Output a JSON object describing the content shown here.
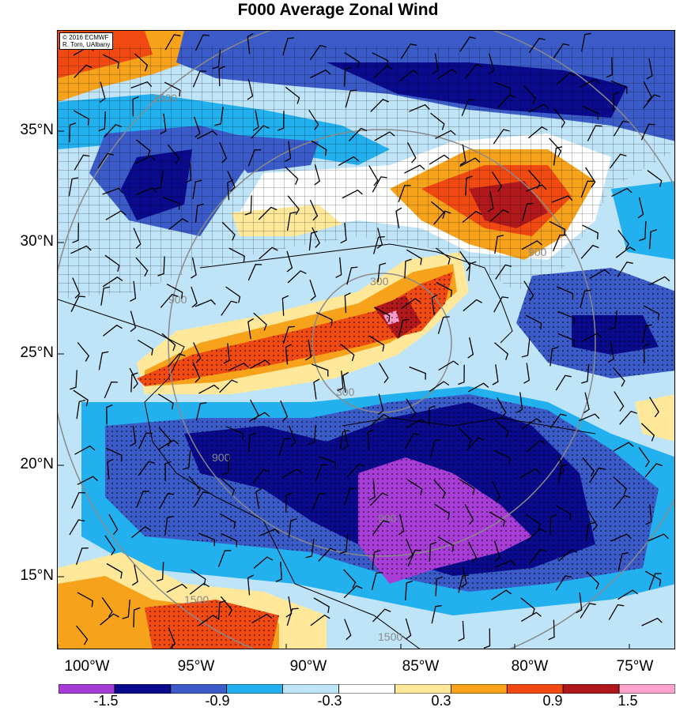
{
  "title": "F000 Average Zonal Wind",
  "credit": {
    "line1": "© 2016 ECMWF",
    "line2": "R. Torn, UAlbany"
  },
  "lat_labels": [
    "35°N",
    "30°N",
    "25°N",
    "20°N",
    "15°N"
  ],
  "lon_labels": [
    "100°W",
    "95°W",
    "90°W",
    "85°W",
    "80°W",
    "75°W"
  ],
  "contour_labels": [
    "300",
    "300",
    "900",
    "900",
    "900",
    "900",
    "1500",
    "1500",
    "1500"
  ],
  "colorbar": {
    "labels": [
      "-1.5",
      "-0.9",
      "-0.3",
      "0.3",
      "0.9",
      "1.5"
    ],
    "colors": [
      "#a83cd6",
      "#0a0a8c",
      "#3a5bc8",
      "#22b0ee",
      "#bfe4f7",
      "#ffffff",
      "#ffe89a",
      "#f7a21b",
      "#f04a12",
      "#b0181c",
      "#ff9ac8"
    ]
  },
  "legend_colors": {
    "strong_negative": "#a83cd6",
    "negative": "#0a0a8c",
    "moderate_negative": "#3a5bc8",
    "weak_negative": "#22b0ee",
    "faint_negative": "#bfe4f7",
    "neutral": "#ffffff",
    "faint_positive": "#ffe89a",
    "weak_positive": "#f7a21b",
    "moderate_positive": "#f04a12",
    "positive": "#b0181c",
    "strong_positive": "#ff9ac8"
  }
}
